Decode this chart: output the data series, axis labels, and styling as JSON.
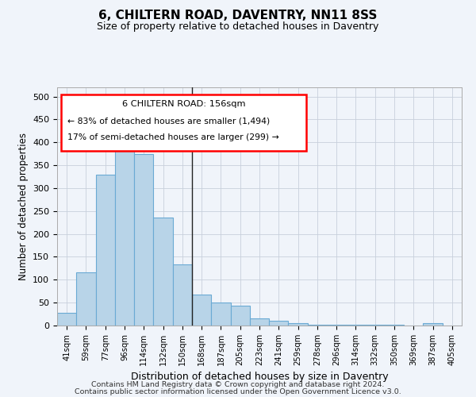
{
  "title": "6, CHILTERN ROAD, DAVENTRY, NN11 8SS",
  "subtitle": "Size of property relative to detached houses in Daventry",
  "xlabel": "Distribution of detached houses by size in Daventry",
  "ylabel": "Number of detached properties",
  "categories": [
    "41sqm",
    "59sqm",
    "77sqm",
    "96sqm",
    "114sqm",
    "132sqm",
    "150sqm",
    "168sqm",
    "187sqm",
    "205sqm",
    "223sqm",
    "241sqm",
    "259sqm",
    "278sqm",
    "296sqm",
    "314sqm",
    "332sqm",
    "350sqm",
    "369sqm",
    "387sqm",
    "405sqm"
  ],
  "values": [
    28,
    116,
    330,
    385,
    375,
    236,
    133,
    68,
    50,
    44,
    15,
    11,
    5,
    2,
    1,
    1,
    1,
    1,
    0,
    6,
    0
  ],
  "bar_color": "#b8d4e8",
  "bar_edge_color": "#6aaad4",
  "ylim": [
    0,
    520
  ],
  "yticks": [
    0,
    50,
    100,
    150,
    200,
    250,
    300,
    350,
    400,
    450,
    500
  ],
  "vline_index": 6.5,
  "annotation_box": {
    "line1": "6 CHILTERN ROAD: 156sqm",
    "line2": "← 83% of detached houses are smaller (1,494)",
    "line3": "17% of semi-detached houses are larger (299) →"
  },
  "footer_line1": "Contains HM Land Registry data © Crown copyright and database right 2024.",
  "footer_line2": "Contains public sector information licensed under the Open Government Licence v3.0.",
  "background_color": "#f0f4fa",
  "grid_color": "#c8d0dc"
}
